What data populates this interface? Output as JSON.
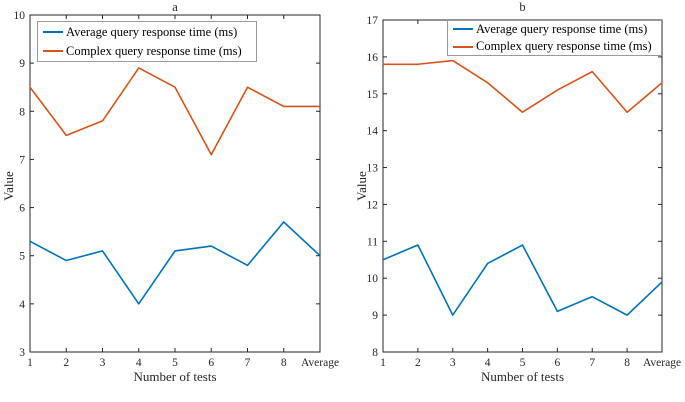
{
  "figure": {
    "background": "#ffffff",
    "axis_color": "#262626",
    "legend_border_color": "#999999"
  },
  "chart_data": [
    {
      "type": "line",
      "title": "a",
      "xlabel": "Number of tests",
      "ylabel": "Value",
      "categories": [
        "1",
        "2",
        "3",
        "4",
        "5",
        "6",
        "7",
        "8",
        "Average"
      ],
      "ylim": [
        3,
        10
      ],
      "ytick_interval": 1,
      "grid": false,
      "legend_position": "top-left",
      "series": [
        {
          "name": "Average query response time (ms)",
          "color": "#0072BD",
          "values": [
            5.3,
            4.9,
            5.1,
            4.0,
            5.1,
            5.2,
            4.8,
            5.7,
            5.0
          ]
        },
        {
          "name": "Complex query response time (ms)",
          "color": "#D95319",
          "values": [
            8.5,
            7.5,
            7.8,
            8.9,
            8.5,
            7.1,
            8.5,
            8.1,
            8.1
          ]
        }
      ]
    },
    {
      "type": "line",
      "title": "b",
      "xlabel": "Number of tests",
      "ylabel": "Value",
      "categories": [
        "1",
        "2",
        "3",
        "4",
        "5",
        "6",
        "7",
        "8",
        "Average"
      ],
      "ylim": [
        8,
        17
      ],
      "ytick_interval": 1,
      "grid": false,
      "legend_position": "top-right",
      "series": [
        {
          "name": "Average query response time (ms)",
          "color": "#0072BD",
          "values": [
            10.5,
            10.9,
            9.0,
            10.4,
            10.9,
            9.1,
            9.5,
            9.0,
            9.9
          ]
        },
        {
          "name": "Complex query response time (ms)",
          "color": "#D95319",
          "values": [
            15.8,
            15.8,
            15.9,
            15.3,
            14.5,
            15.1,
            15.6,
            14.5,
            15.3
          ]
        }
      ]
    }
  ]
}
